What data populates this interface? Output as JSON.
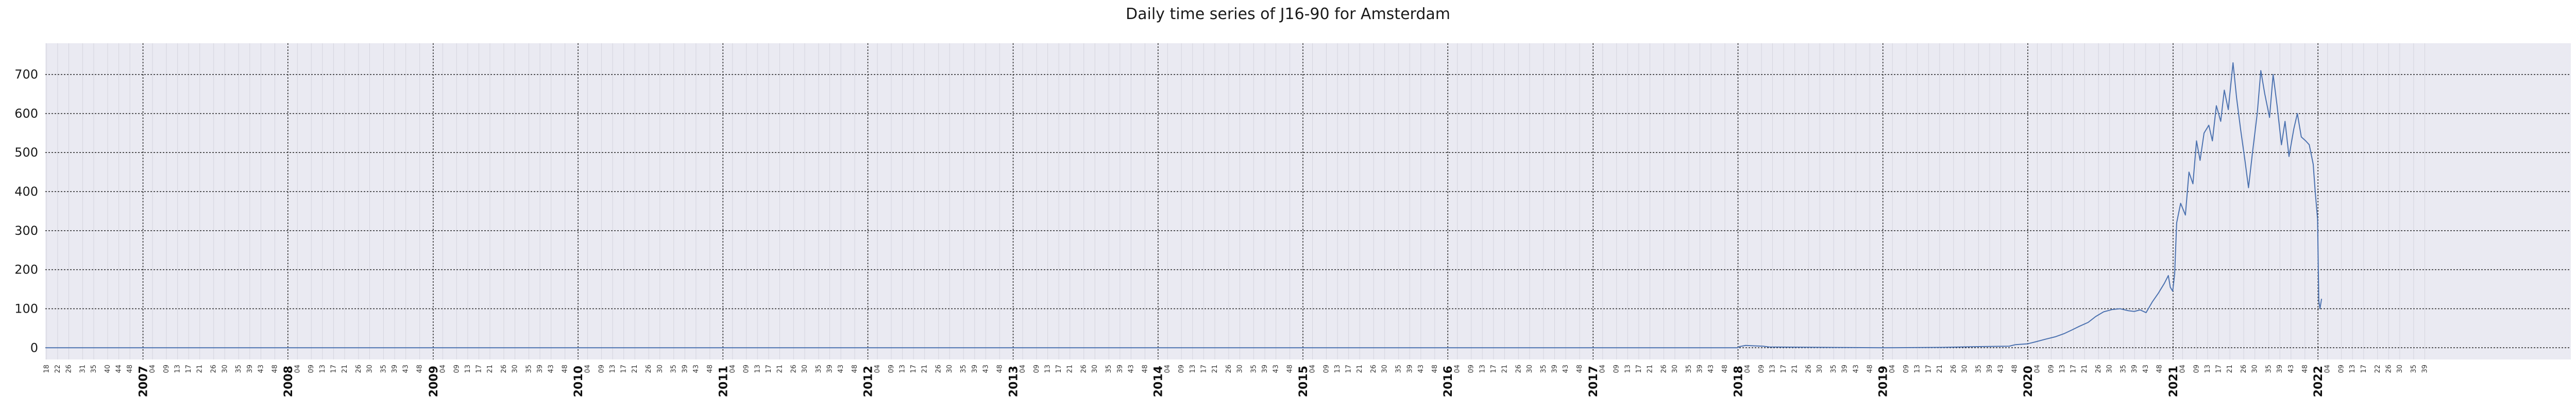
{
  "chart_data": {
    "type": "line",
    "title": "Daily time series of J16-90 for Amsterdam",
    "xlabel": "",
    "ylabel": "",
    "x_range": [
      "2006-04-30",
      "2023-09-30"
    ],
    "ylim": [
      -30,
      780
    ],
    "y_ticks": [
      0,
      100,
      200,
      300,
      400,
      500,
      600,
      700
    ],
    "x_year_ticks": [
      "2007",
      "2008",
      "2009",
      "2010",
      "2011",
      "2012",
      "2013",
      "2014",
      "2015",
      "2016",
      "2017",
      "2018",
      "2019",
      "2020",
      "2021",
      "2022"
    ],
    "week_ticks_per_year": [
      "04",
      "09",
      "13",
      "17",
      "21",
      "26",
      "30",
      "35",
      "39",
      "43",
      "48"
    ],
    "week_ticks_2006": [
      "18",
      "22",
      "26",
      "31",
      "35",
      "40",
      "44",
      "48"
    ],
    "week_ticks_2022": [
      "04",
      "09",
      "13",
      "17",
      "22",
      "26",
      "30",
      "35",
      "39"
    ],
    "grid": true,
    "legend": "none",
    "line_color": "#4c72b0",
    "series": [
      {
        "values_x": [
          "2006-05-01",
          "2017-12-31",
          "2018-01-05",
          "2018-01-20",
          "2018-02-10",
          "2018-03-05",
          "2018-03-20",
          "2019-01-01",
          "2019-06-01",
          "2019-09-01",
          "2019-11-15",
          "2019-12-01",
          "2019-12-31",
          "2020-01-20",
          "2020-02-15",
          "2020-03-10",
          "2020-04-01",
          "2020-04-20",
          "2020-05-10",
          "2020-06-01",
          "2020-06-20",
          "2020-07-10",
          "2020-08-01",
          "2020-08-20",
          "2020-09-10",
          "2020-09-25",
          "2020-10-10",
          "2020-10-25",
          "2020-11-10",
          "2020-11-25",
          "2020-12-10",
          "2020-12-20",
          "2020-12-25",
          "2020-12-31",
          "2021-01-05",
          "2021-01-10",
          "2021-01-20",
          "2021-02-01",
          "2021-02-10",
          "2021-02-20",
          "2021-03-01",
          "2021-03-10",
          "2021-03-20",
          "2021-04-01",
          "2021-04-10",
          "2021-04-20",
          "2021-05-01",
          "2021-05-10",
          "2021-05-20",
          "2021-06-01",
          "2021-06-10",
          "2021-06-20",
          "2021-07-01",
          "2021-07-10",
          "2021-07-20",
          "2021-08-01",
          "2021-08-10",
          "2021-08-20",
          "2021-09-01",
          "2021-09-10",
          "2021-09-20",
          "2021-10-01",
          "2021-10-10",
          "2021-10-20",
          "2021-11-01",
          "2021-11-10",
          "2021-11-20",
          "2021-12-01",
          "2021-12-10",
          "2021-12-20",
          "2021-12-25",
          "2021-12-31",
          "2022-01-03",
          "2022-01-06",
          "2022-01-10"
        ],
        "values_y": [
          0,
          0,
          3,
          6,
          5,
          4,
          2,
          0,
          1,
          3,
          4,
          8,
          10,
          15,
          22,
          28,
          36,
          45,
          55,
          65,
          80,
          92,
          98,
          100,
          95,
          93,
          97,
          90,
          118,
          140,
          165,
          185,
          155,
          145,
          190,
          320,
          370,
          340,
          450,
          420,
          530,
          480,
          550,
          570,
          530,
          620,
          580,
          660,
          610,
          730,
          640,
          560,
          480,
          410,
          500,
          600,
          710,
          650,
          590,
          700,
          620,
          520,
          580,
          490,
          560,
          600,
          540,
          530,
          520,
          470,
          400,
          330,
          120,
          100,
          125
        ]
      }
    ]
  }
}
